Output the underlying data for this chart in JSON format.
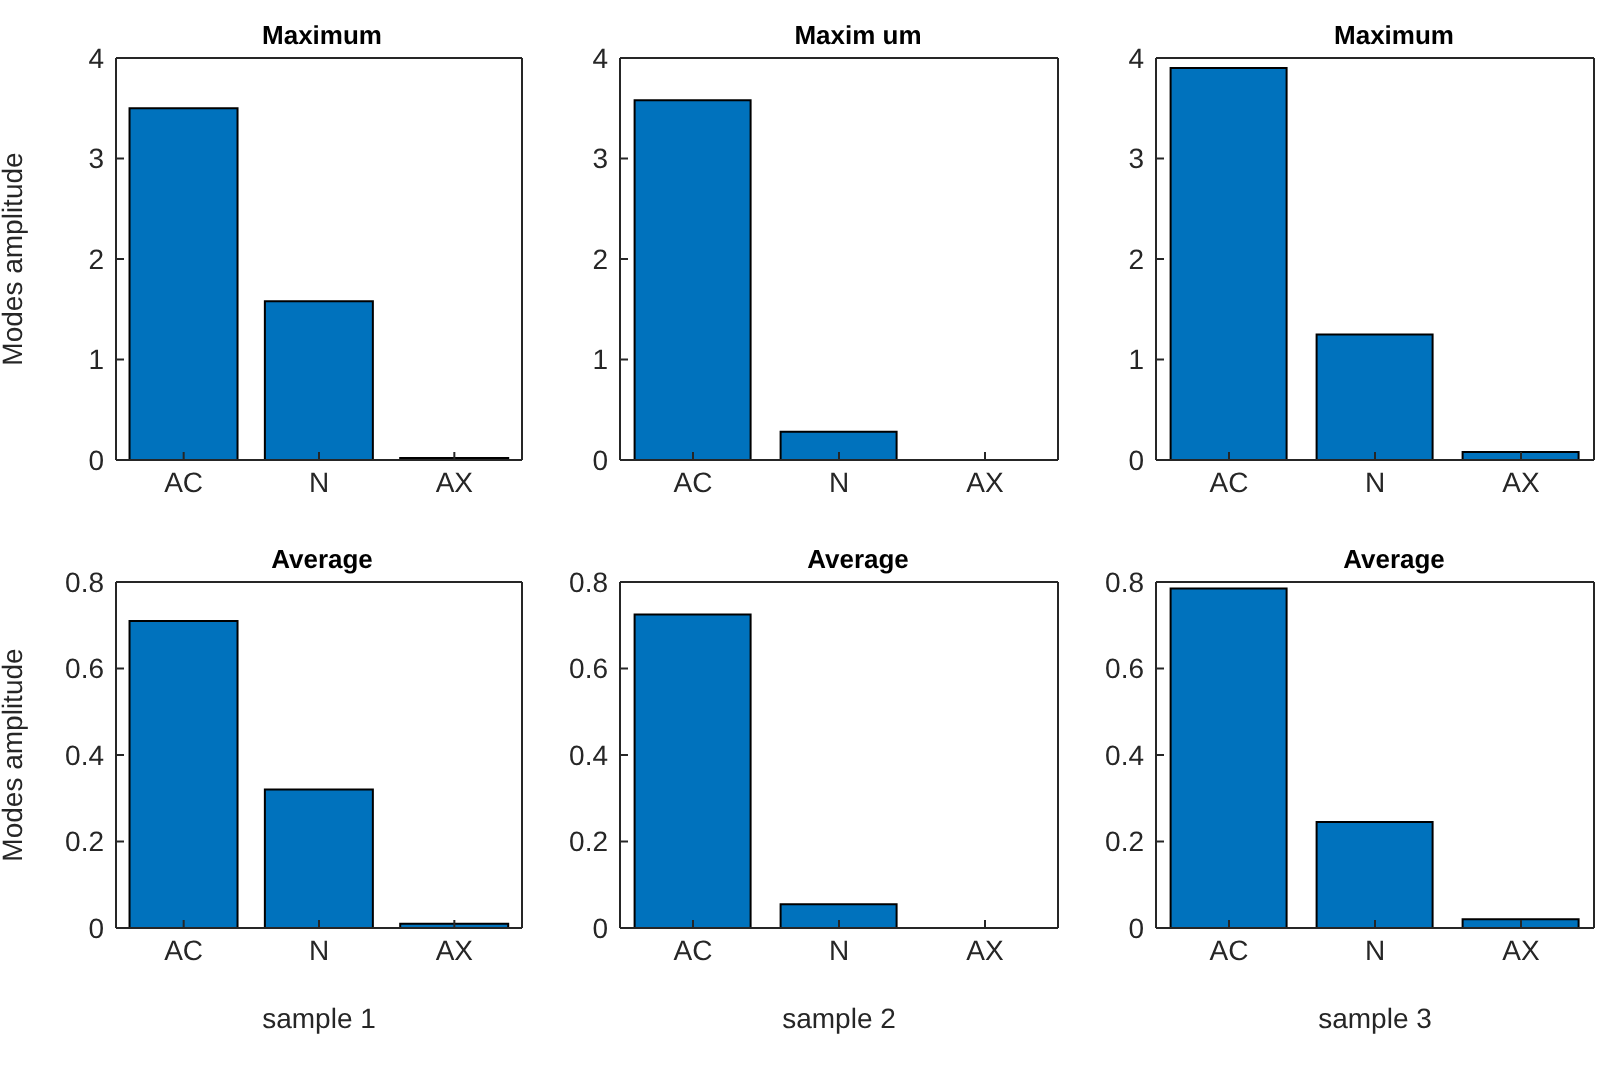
{
  "chart_data": [
    {
      "type": "bar",
      "title": "Maximum",
      "ylabel": "Modes amplitude",
      "categories": [
        "AC",
        "N",
        "AX"
      ],
      "values": [
        3.5,
        1.58,
        0.02
      ],
      "color": "#0072bd",
      "ylim": [
        0,
        4
      ],
      "yticks": [
        0,
        1,
        2,
        3,
        4
      ],
      "grid": false
    },
    {
      "type": "bar",
      "title": "Maxim um",
      "categories": [
        "AC",
        "N",
        "AX"
      ],
      "values": [
        3.58,
        0.28,
        0
      ],
      "color": "#0072bd",
      "ylim": [
        0,
        4
      ],
      "yticks": [
        0,
        1,
        2,
        3,
        4
      ],
      "grid": false
    },
    {
      "type": "bar",
      "title": "Maximum",
      "categories": [
        "AC",
        "N",
        "AX"
      ],
      "values": [
        3.9,
        1.25,
        0.08
      ],
      "color": "#0072bd",
      "ylim": [
        0,
        4
      ],
      "yticks": [
        0,
        1,
        2,
        3,
        4
      ],
      "grid": false
    },
    {
      "type": "bar",
      "title": "Average",
      "ylabel": "Modes amplitude",
      "xlabel": "sample 1",
      "categories": [
        "AC",
        "N",
        "AX"
      ],
      "values": [
        0.71,
        0.32,
        0.01
      ],
      "color": "#0072bd",
      "ylim": [
        0,
        0.8
      ],
      "yticks": [
        0,
        0.2,
        0.4,
        0.6,
        0.8
      ],
      "grid": false
    },
    {
      "type": "bar",
      "title": "Average",
      "xlabel": "sample 2",
      "categories": [
        "AC",
        "N",
        "AX"
      ],
      "values": [
        0.725,
        0.055,
        0
      ],
      "color": "#0072bd",
      "ylim": [
        0,
        0.8
      ],
      "yticks": [
        0,
        0.2,
        0.4,
        0.6,
        0.8
      ],
      "grid": false
    },
    {
      "type": "bar",
      "title": "Average",
      "xlabel": "sample 3",
      "categories": [
        "AC",
        "N",
        "AX"
      ],
      "values": [
        0.785,
        0.245,
        0.02
      ],
      "color": "#0072bd",
      "ylim": [
        0,
        0.8
      ],
      "yticks": [
        0,
        0.2,
        0.4,
        0.6,
        0.8
      ],
      "grid": false
    }
  ]
}
